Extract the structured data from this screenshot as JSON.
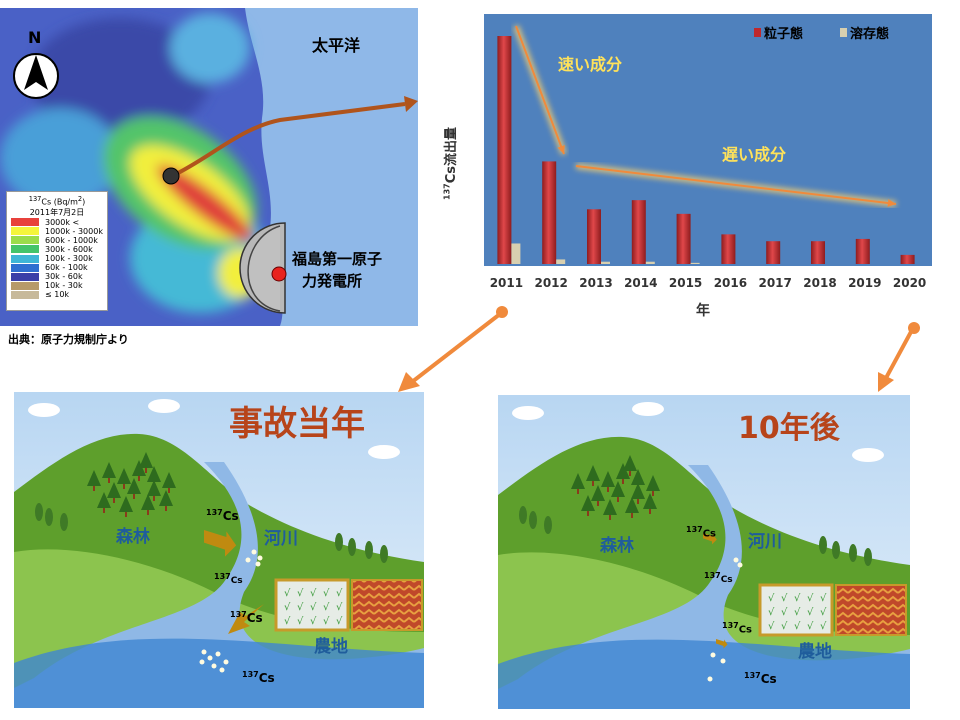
{
  "map": {
    "north": "N",
    "ocean_label": "太平洋",
    "plant_label_line1": "福島第一原子",
    "plant_label_line2": "力発電所",
    "legend_title_sup": "137",
    "legend_title": "Cs (Bq/m",
    "legend_title_sup2": "2",
    "legend_title_end": ")",
    "legend_date": "2011年7月2日",
    "legend": [
      {
        "label": "3000k <",
        "color": "#e8413c"
      },
      {
        "label": "1000k - 3000k",
        "color": "#f5f53c"
      },
      {
        "label": "600k - 1000k",
        "color": "#9bdc4b"
      },
      {
        "label": "300k - 600k",
        "color": "#44c46a"
      },
      {
        "label": "100k - 300k",
        "color": "#3fb6d6"
      },
      {
        "label": "60k - 100k",
        "color": "#2f6fd0"
      },
      {
        "label": "30k - 60k",
        "color": "#3a3fa8"
      },
      {
        "label": "10k - 30k",
        "color": "#b79a6a"
      },
      {
        "label": "≤ 10k",
        "color": "#c7b99a"
      }
    ],
    "source": "出典：原子力規制庁より"
  },
  "chart_data": {
    "type": "bar",
    "categories": [
      "2011",
      "2012",
      "2013",
      "2014",
      "2015",
      "2016",
      "2017",
      "2018",
      "2019",
      "2020"
    ],
    "series": [
      {
        "name": "粒子態",
        "color": "#c0282c",
        "values": [
          100,
          45,
          24,
          28,
          22,
          13,
          10,
          10,
          11,
          4
        ]
      },
      {
        "name": "溶存態",
        "color": "#d8d0b0",
        "values": [
          9,
          2,
          1,
          1,
          0.5,
          0,
          0,
          0,
          0,
          0
        ]
      }
    ],
    "ylabel_sup": "137",
    "ylabel": "Cs流出量",
    "xlabel": "年",
    "ylim": [
      0,
      100
    ],
    "annotations": {
      "fast": "速い成分",
      "slow": "遅い成分"
    }
  },
  "panels": {
    "left_title": "事故当年",
    "right_title": "10年後",
    "forest": "森林",
    "river": "河川",
    "farm": "農地",
    "cs_sup": "137",
    "cs": "Cs"
  }
}
